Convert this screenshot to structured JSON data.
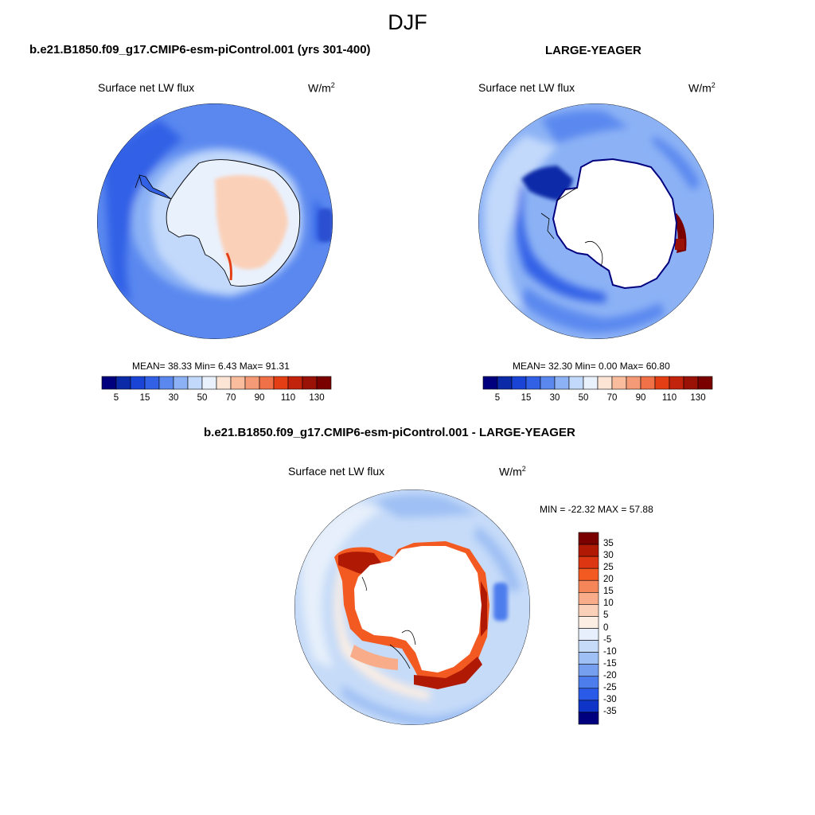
{
  "figure": {
    "title": "DJF",
    "panels": [
      {
        "case_title": "b.e21.B1850.f09_g17.CMIP6-esm-piControl.001 (yrs 301-400)",
        "variable": "Surface net LW flux",
        "units_base": "W/m",
        "units_sup": "2",
        "stats": "MEAN=  38.33  Min=   6.43  Max=  91.31"
      },
      {
        "case_title": "LARGE-YEAGER",
        "variable": "Surface net LW flux",
        "units_base": "W/m",
        "units_sup": "2",
        "stats": "MEAN=  32.30  Min=   0.00  Max=  60.80"
      },
      {
        "case_title": "b.e21.B1850.f09_g17.CMIP6-esm-piControl.001 - LARGE-YEAGER",
        "variable": "Surface net LW flux",
        "units_base": "W/m",
        "units_sup": "2",
        "stats": "MIN = -22.32 MAX =  57.88"
      }
    ],
    "colorbar_abs": {
      "tick_labels": [
        "5",
        "15",
        "30",
        "50",
        "70",
        "90",
        "110",
        "130"
      ],
      "colors": [
        "#00007f",
        "#0a2aa8",
        "#1a44d6",
        "#3361e6",
        "#5a88ef",
        "#8cb2f5",
        "#c2d9fb",
        "#e9f1fd",
        "#fde5d6",
        "#f9bd9e",
        "#f59a76",
        "#f07048",
        "#e43e14",
        "#c1230c",
        "#9a1106",
        "#7a0000"
      ]
    },
    "colorbar_diff": {
      "tick_labels": [
        "35",
        "30",
        "25",
        "20",
        "15",
        "10",
        "5",
        "0",
        "-5",
        "-10",
        "-15",
        "-20",
        "-25",
        "-30",
        "-35"
      ],
      "colors": [
        "#7a0000",
        "#b01a05",
        "#dd3612",
        "#f25a22",
        "#f5865a",
        "#f8ac8a",
        "#fbd0b8",
        "#fdeee3",
        "#e6effb",
        "#c6dbf8",
        "#9fc0f4",
        "#769ff0",
        "#4d7ded",
        "#2a5ae8",
        "#0f35c8",
        "#00007f"
      ]
    }
  }
}
